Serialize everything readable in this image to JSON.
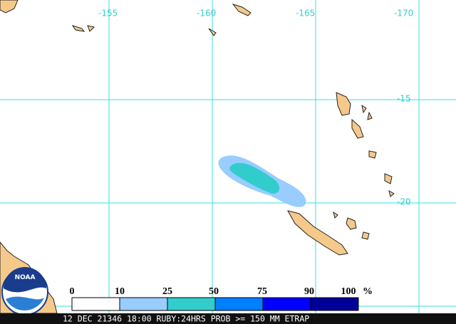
{
  "map": {
    "longitude_labels": [
      "-155",
      "-160",
      "-165",
      "-170"
    ],
    "latitude_labels": [
      "-15",
      "-20"
    ],
    "logo": "NOAA",
    "legend": {
      "labels": [
        "0",
        "10",
        "25",
        "50",
        "75",
        "90",
        "100"
      ],
      "unit": "%"
    },
    "footer": "12 DEC 21346 18:00 RUBY:24HRS PROB >= 150 MM ETRAP"
  }
}
